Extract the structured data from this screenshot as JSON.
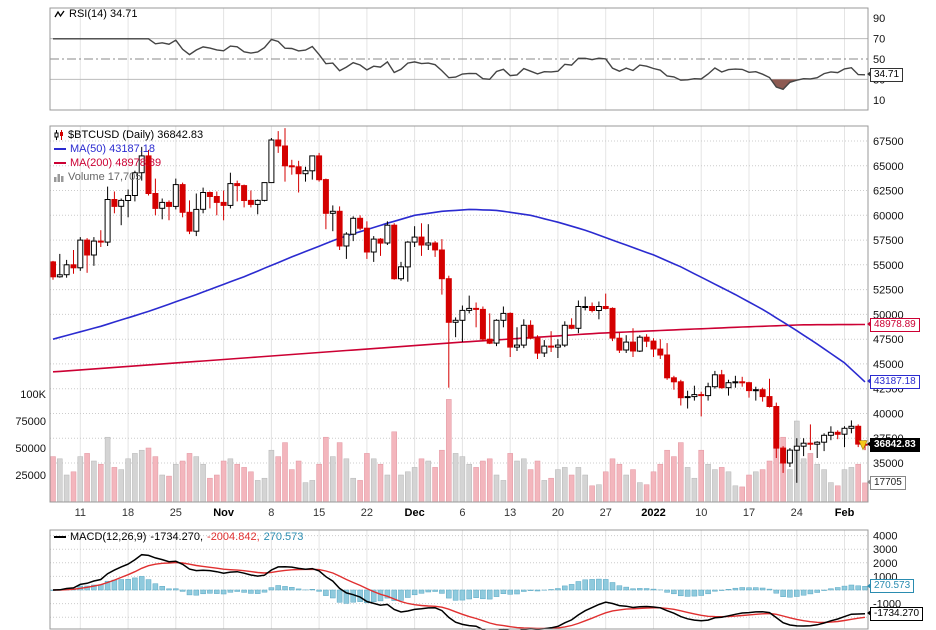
{
  "colors": {
    "candle_up": "#000000",
    "candle_down": "#d40000",
    "ma50": "#2b2bd0",
    "ma200": "#cc0033",
    "volume_up": "#d4d4d4",
    "volume_down": "#f3b6bd",
    "rsi_line": "#444444",
    "rsi_overbought_fill": "#3c6e47",
    "rsi_oversold_fill": "#8d5a52",
    "macd_line": "#000000",
    "signal_line": "#e03030",
    "histogram": "#8fcadd",
    "grid": "#e4e4e4",
    "alert_marker": "#f5c71a"
  },
  "rsi_panel": {
    "legend": "RSI(14) 34.71",
    "ticks": [
      90,
      70,
      50,
      30,
      10
    ],
    "overbought": 70,
    "oversold": 30,
    "midline": 50
  },
  "main_panel": {
    "legend_symbol": "$BTCUSD (Daily) 36842.83",
    "legend_ma50": "MA(50) 43187.18",
    "legend_ma200": "MA(200) 48978.89",
    "legend_volume": "Volume 17,705",
    "price_ticks": [
      67500,
      65000,
      62500,
      60000,
      57500,
      55000,
      52500,
      50000,
      47500,
      45000,
      42500,
      40000,
      37500,
      35000
    ],
    "volume_ticks": [
      {
        "t": "100K",
        "v": 100000
      },
      {
        "t": "75000",
        "v": 75000
      },
      {
        "t": "50000",
        "v": 50000
      },
      {
        "t": "25000",
        "v": 25000
      }
    ],
    "x_labels": [
      {
        "t": "11",
        "i": 4
      },
      {
        "t": "18",
        "i": 11
      },
      {
        "t": "25",
        "i": 18
      },
      {
        "t": "Nov",
        "i": 25,
        "b": true
      },
      {
        "t": "8",
        "i": 32
      },
      {
        "t": "15",
        "i": 39
      },
      {
        "t": "22",
        "i": 46
      },
      {
        "t": "Dec",
        "i": 53,
        "b": true
      },
      {
        "t": "6",
        "i": 60
      },
      {
        "t": "13",
        "i": 67
      },
      {
        "t": "20",
        "i": 74
      },
      {
        "t": "27",
        "i": 81
      },
      {
        "t": "2022",
        "i": 88,
        "b": true
      },
      {
        "t": "10",
        "i": 95
      },
      {
        "t": "17",
        "i": 102
      },
      {
        "t": "24",
        "i": 109
      },
      {
        "t": "Feb",
        "i": 116,
        "b": true
      }
    ]
  },
  "macd_panel": {
    "legend_name": "MACD(12,26,9)",
    "legend_macd": "-1734.270,",
    "legend_signal": "-2004.842,",
    "legend_hist": "270.573",
    "ticks": [
      4000,
      3000,
      2000,
      1000,
      -1000
    ]
  },
  "callouts": {
    "rsi": {
      "label": "34.71",
      "value": 34.71
    },
    "ma200": {
      "label": "48978.89",
      "value": 48978.89
    },
    "ma50": {
      "label": "43187.18",
      "value": 43187.18
    },
    "close": {
      "label": "36842.83",
      "value": 36842.83
    },
    "volume": {
      "label": "17705",
      "value": 17705
    },
    "hist": {
      "label": "270.573",
      "value": 270.573
    },
    "macd": {
      "label": "-1734.270",
      "value": -1734.27
    }
  },
  "chart_data": [
    {
      "type": "line",
      "title": "RSI(14)",
      "ylim": [
        0,
        100
      ],
      "bands": {
        "overbought": 70,
        "oversold": 30,
        "midline": 50
      },
      "last_value": 34.71,
      "derived_from": "wilder_rsi_14_of_candle_closes"
    },
    {
      "type": "candlestick",
      "title": "$BTCUSD (Daily)",
      "last_close": 36842.83,
      "last_volume": 17705,
      "ma50_last": 43187.18,
      "ma200_last": 48978.89,
      "ylim": [
        31000,
        69000
      ],
      "volume_axis": [
        25000,
        50000,
        75000,
        100000
      ],
      "candles": [
        [
          55300,
          55400,
          53500,
          53800,
          42000
        ],
        [
          53800,
          56100,
          53700,
          54000,
          40000
        ],
        [
          54000,
          55500,
          53700,
          55000,
          25000
        ],
        [
          55000,
          56500,
          54100,
          54700,
          28000
        ],
        [
          54700,
          57800,
          54400,
          57500,
          42000
        ],
        [
          57500,
          57700,
          54200,
          56000,
          45000
        ],
        [
          56000,
          57800,
          54900,
          57400,
          38000
        ],
        [
          57400,
          58500,
          56800,
          57300,
          35000
        ],
        [
          57300,
          62900,
          56900,
          61600,
          60000
        ],
        [
          61600,
          62400,
          60200,
          60900,
          32000
        ],
        [
          60900,
          61700,
          59000,
          61500,
          30000
        ],
        [
          61500,
          62600,
          59800,
          62000,
          40000
        ],
        [
          62000,
          64500,
          61400,
          64300,
          45000
        ],
        [
          64300,
          66900,
          63500,
          66000,
          48000
        ],
        [
          66000,
          66600,
          62000,
          62200,
          50000
        ],
        [
          62200,
          63700,
          60000,
          60700,
          42000
        ],
        [
          60700,
          61700,
          59600,
          61300,
          25000
        ],
        [
          61300,
          61500,
          59500,
          60900,
          24000
        ],
        [
          60900,
          63700,
          60600,
          63100,
          35000
        ],
        [
          63100,
          63300,
          59800,
          60300,
          38000
        ],
        [
          60300,
          61500,
          58100,
          58400,
          45000
        ],
        [
          58400,
          62200,
          57900,
          60600,
          42000
        ],
        [
          60600,
          62800,
          60200,
          62300,
          35000
        ],
        [
          62300,
          62400,
          60700,
          61900,
          22000
        ],
        [
          61900,
          62400,
          60000,
          61300,
          25000
        ],
        [
          61300,
          62500,
          59500,
          61000,
          38000
        ],
        [
          61000,
          64300,
          60700,
          63200,
          40000
        ],
        [
          63200,
          63500,
          61400,
          63000,
          35000
        ],
        [
          63000,
          63100,
          60800,
          61500,
          32000
        ],
        [
          61500,
          62500,
          60800,
          61100,
          28000
        ],
        [
          61100,
          61600,
          60100,
          61500,
          20000
        ],
        [
          61500,
          63300,
          61400,
          63300,
          22000
        ],
        [
          63300,
          67800,
          63300,
          67600,
          48000
        ],
        [
          67600,
          68500,
          66300,
          67000,
          42000
        ],
        [
          67000,
          68800,
          63400,
          65000,
          55000
        ],
        [
          65000,
          65600,
          64100,
          64900,
          30000
        ],
        [
          64900,
          65500,
          62300,
          64200,
          38000
        ],
        [
          64200,
          64900,
          63400,
          64500,
          18000
        ],
        [
          64500,
          66000,
          63600,
          66000,
          20000
        ],
        [
          66000,
          66300,
          63400,
          63600,
          35000
        ],
        [
          63600,
          63700,
          58600,
          60200,
          60000
        ],
        [
          60200,
          61000,
          58400,
          60400,
          42000
        ],
        [
          60400,
          60900,
          56500,
          56900,
          55000
        ],
        [
          56900,
          58300,
          55600,
          58100,
          40000
        ],
        [
          58100,
          59900,
          57400,
          59700,
          22000
        ],
        [
          59700,
          60000,
          58500,
          58700,
          20000
        ],
        [
          58700,
          59400,
          55600,
          56300,
          45000
        ],
        [
          56300,
          57900,
          55300,
          57600,
          40000
        ],
        [
          57600,
          57700,
          55900,
          57200,
          35000
        ],
        [
          57200,
          59400,
          57000,
          59000,
          25000
        ],
        [
          59000,
          59200,
          53500,
          53600,
          65000
        ],
        [
          53600,
          55300,
          53400,
          54800,
          25000
        ],
        [
          54800,
          57400,
          53300,
          57300,
          28000
        ],
        [
          57300,
          58900,
          56800,
          57800,
          32000
        ],
        [
          57800,
          59200,
          55900,
          57000,
          40000
        ],
        [
          57000,
          59100,
          56500,
          57200,
          38000
        ],
        [
          57200,
          57400,
          55800,
          56500,
          32000
        ],
        [
          56500,
          57600,
          52000,
          53600,
          48000
        ],
        [
          53600,
          53900,
          42600,
          49200,
          95000
        ],
        [
          49200,
          49700,
          47700,
          49400,
          45000
        ],
        [
          49400,
          50900,
          47200,
          50400,
          42000
        ],
        [
          50400,
          51900,
          50100,
          50600,
          35000
        ],
        [
          50600,
          51200,
          48700,
          50500,
          32000
        ],
        [
          50500,
          50800,
          47300,
          47500,
          38000
        ],
        [
          47500,
          50100,
          47000,
          47100,
          40000
        ],
        [
          47100,
          49500,
          46800,
          49400,
          25000
        ],
        [
          49400,
          50800,
          48700,
          50100,
          20000
        ],
        [
          50100,
          50200,
          45700,
          46700,
          45000
        ],
        [
          46700,
          48700,
          46300,
          46900,
          38000
        ],
        [
          46900,
          49500,
          46600,
          48900,
          40000
        ],
        [
          48900,
          49400,
          47500,
          47600,
          30000
        ],
        [
          47600,
          47900,
          45500,
          46100,
          38000
        ],
        [
          46100,
          47400,
          45700,
          46800,
          20000
        ],
        [
          46800,
          48300,
          46200,
          46700,
          22000
        ],
        [
          46700,
          47500,
          45600,
          46900,
          30000
        ],
        [
          46900,
          49300,
          46700,
          48900,
          32000
        ],
        [
          48900,
          49600,
          48500,
          48600,
          25000
        ],
        [
          48600,
          51400,
          48100,
          50800,
          32000
        ],
        [
          50800,
          51800,
          50400,
          50800,
          25000
        ],
        [
          50800,
          51200,
          50200,
          50400,
          15000
        ],
        [
          50400,
          51300,
          49500,
          50800,
          16000
        ],
        [
          50800,
          52100,
          50500,
          50600,
          28000
        ],
        [
          50600,
          50700,
          47300,
          47600,
          40000
        ],
        [
          47600,
          48200,
          46100,
          46400,
          35000
        ],
        [
          46400,
          47900,
          46100,
          47200,
          25000
        ],
        [
          47200,
          48600,
          45700,
          46300,
          30000
        ],
        [
          46300,
          47900,
          46200,
          47700,
          18000
        ],
        [
          47700,
          48000,
          46700,
          47300,
          16000
        ],
        [
          47300,
          47600,
          45700,
          46500,
          28000
        ],
        [
          46500,
          47500,
          45500,
          45900,
          35000
        ],
        [
          45900,
          47100,
          43400,
          43600,
          48000
        ],
        [
          43600,
          43800,
          42400,
          43200,
          42000
        ],
        [
          43200,
          43400,
          40800,
          41600,
          55000
        ],
        [
          41600,
          42300,
          40500,
          41700,
          32000
        ],
        [
          41700,
          42800,
          41300,
          41900,
          22000
        ],
        [
          41900,
          42200,
          39700,
          41800,
          48000
        ],
        [
          41800,
          43100,
          41300,
          42700,
          35000
        ],
        [
          42700,
          44300,
          42500,
          43900,
          30000
        ],
        [
          43900,
          44400,
          42500,
          42600,
          32000
        ],
        [
          42600,
          43400,
          41800,
          43100,
          28000
        ],
        [
          43100,
          43800,
          42600,
          43200,
          15000
        ],
        [
          43200,
          43700,
          42700,
          43100,
          14000
        ],
        [
          43100,
          43200,
          41600,
          42300,
          25000
        ],
        [
          42300,
          42700,
          41300,
          42400,
          28000
        ],
        [
          42400,
          42600,
          41200,
          41700,
          30000
        ],
        [
          41700,
          43500,
          40600,
          40700,
          38000
        ],
        [
          40700,
          41100,
          35500,
          36500,
          80000
        ],
        [
          36500,
          36700,
          34000,
          35000,
          60000
        ],
        [
          35000,
          36500,
          34600,
          36300,
          30000
        ],
        [
          36300,
          37500,
          33000,
          36700,
          75000
        ],
        [
          36700,
          37500,
          35700,
          37000,
          40000
        ],
        [
          37000,
          38900,
          36300,
          36900,
          45000
        ],
        [
          36900,
          37200,
          35500,
          37100,
          35000
        ],
        [
          37100,
          38000,
          36200,
          37800,
          30000
        ],
        [
          37800,
          38700,
          37300,
          38100,
          18000
        ],
        [
          38100,
          38300,
          37400,
          37900,
          15000
        ],
        [
          37900,
          38700,
          36600,
          38500,
          30000
        ],
        [
          38500,
          39300,
          38000,
          38700,
          32000
        ],
        [
          38700,
          38900,
          36600,
          36900,
          35000
        ],
        [
          36900,
          37300,
          36300,
          36843,
          17705
        ]
      ],
      "ma50_anchors": [
        [
          0,
          47500
        ],
        [
          7,
          48800
        ],
        [
          14,
          50300
        ],
        [
          21,
          52000
        ],
        [
          28,
          53800
        ],
        [
          35,
          55800
        ],
        [
          42,
          57700
        ],
        [
          49,
          59200
        ],
        [
          53,
          60000
        ],
        [
          57,
          60400
        ],
        [
          61,
          60600
        ],
        [
          65,
          60500
        ],
        [
          70,
          60000
        ],
        [
          74,
          59300
        ],
        [
          78,
          58500
        ],
        [
          82,
          57500
        ],
        [
          88,
          56000
        ],
        [
          92,
          54800
        ],
        [
          96,
          53400
        ],
        [
          100,
          52000
        ],
        [
          104,
          50500
        ],
        [
          108,
          48800
        ],
        [
          112,
          47000
        ],
        [
          116,
          45100
        ],
        [
          119,
          43187
        ]
      ],
      "ma200_anchors": [
        [
          0,
          44200
        ],
        [
          20,
          45200
        ],
        [
          40,
          46200
        ],
        [
          60,
          47200
        ],
        [
          80,
          48100
        ],
        [
          100,
          48700
        ],
        [
          110,
          48950
        ],
        [
          119,
          48979
        ]
      ]
    },
    {
      "type": "bar+line",
      "title": "MACD(12,26,9)",
      "ylim": [
        -2900,
        4400
      ],
      "last": {
        "macd": -1734.27,
        "signal": -2004.842,
        "hist": 270.573
      },
      "derived_from": "ema12_minus_ema26_signal_ema9_of_candle_closes"
    }
  ]
}
